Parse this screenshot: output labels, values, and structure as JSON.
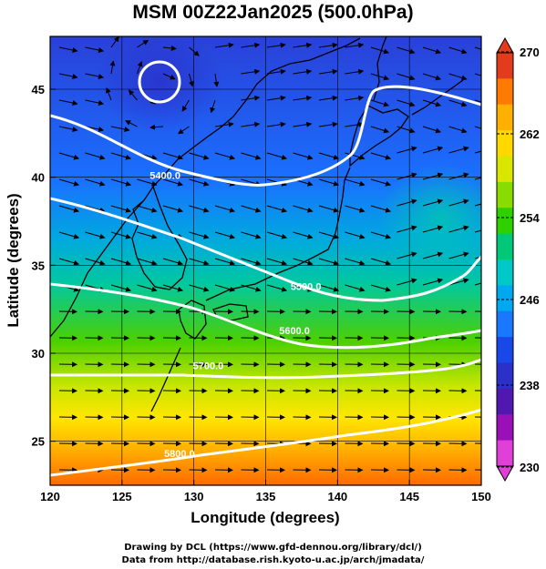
{
  "title": "MSM 00Z22Jan2025 (500.0hPa)",
  "map": {
    "xlabel": "Longitude (degrees)",
    "ylabel": "Latitude  (degrees)",
    "lon_range": [
      120,
      150
    ],
    "lat_range": [
      22.5,
      48
    ],
    "lon_ticks": [
      120,
      125,
      130,
      135,
      140,
      145,
      150
    ],
    "lat_ticks": [
      25,
      30,
      35,
      40,
      45
    ],
    "fill_field": "temperature",
    "fill_colors_warm_to_cold": [
      "#ff6a00",
      "#ffb000",
      "#ffe600",
      "#c8e600",
      "#4cd000",
      "#00c8a0",
      "#00a8e0",
      "#1a70ff",
      "#2a40d8"
    ],
    "contour_color": "#ffffff",
    "vector_color": "#000000",
    "contours": [
      {
        "label": "5400.0",
        "lon": 128.0,
        "lat": 40.1
      },
      {
        "label": "5500.0",
        "lon": 137.8,
        "lat": 33.8
      },
      {
        "label": "5600.0",
        "lon": 137.0,
        "lat": 31.3
      },
      {
        "label": "5700.0",
        "lon": 131.0,
        "lat": 29.3
      },
      {
        "label": "5800.0",
        "lon": 129.0,
        "lat": 24.3
      }
    ]
  },
  "colorbar": {
    "labels": [
      "270",
      "262",
      "254",
      "246",
      "238",
      "230"
    ],
    "colors_top_to_bottom": [
      "#e23b1e",
      "#ff7a00",
      "#ffb000",
      "#ffd800",
      "#d8e600",
      "#88dc00",
      "#2ed000",
      "#00c878",
      "#00c8c8",
      "#00a8f0",
      "#1a78ff",
      "#1a48e8",
      "#2a30c8",
      "#5018b0",
      "#9a10b8",
      "#e040d8"
    ]
  },
  "credits": [
    "Drawing by DCL (https://www.gfd-dennou.org/library/dcl/)",
    "Data from http://database.rish.kyoto-u.ac.jp/arch/jmadata/"
  ]
}
